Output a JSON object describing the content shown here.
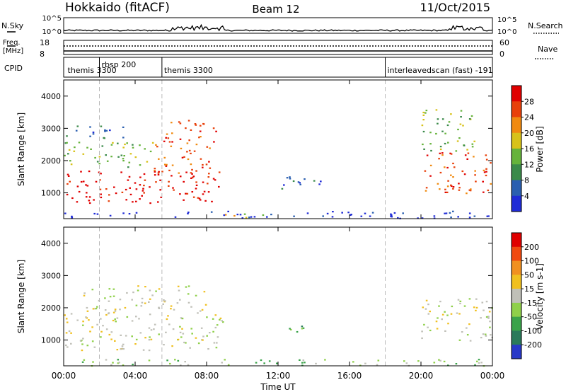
{
  "header": {
    "title": "Hokkaido (fitACF)",
    "beam": "Beam 12",
    "date": "11/Oct/2015"
  },
  "top_panels": {
    "nsky_label": "N.Sky",
    "nsky_ticks": [
      "10^5",
      "10^0"
    ],
    "nsky_right_ticks": [
      "10^5",
      "10^0"
    ],
    "nsearch_label": "N.Search",
    "freq_label_line1": "Freq.",
    "freq_label_line2": "[MHz]",
    "freq_ticks": [
      "18",
      "8"
    ],
    "nave_label": "Nave",
    "nave_ticks": [
      "60",
      "0"
    ],
    "cpid_label": "CPID"
  },
  "cpid_segments": [
    {
      "label": "themis 3300",
      "start_hour": 0.1
    },
    {
      "label": "rbsp 200",
      "start_hour": 2.0
    },
    {
      "label": "themis 3300",
      "start_hour": 5.5
    },
    {
      "label": "interleavedscan (fast) -191",
      "start_hour": 18.0
    }
  ],
  "chart_data": [
    {
      "type": "heatmap",
      "panel": "power",
      "ylabel": "Slant Range [km]",
      "ylim": [
        200,
        4500
      ],
      "yticks": [
        1000,
        2000,
        3000,
        4000
      ],
      "colorbar_label": "Power [dB]",
      "colorbar_ticks": [
        4,
        8,
        12,
        16,
        20,
        24,
        28
      ],
      "colorbar_colors": [
        "#1f2bd6",
        "#2a5fb0",
        "#3b8a4a",
        "#66b33b",
        "#d8c21a",
        "#f08a10",
        "#e8400a",
        "#e00000"
      ],
      "x_range_hours": [
        0,
        24
      ],
      "regions": [
        {
          "h0": 0.0,
          "h1": 9.0,
          "r0": 700,
          "r1": 1700,
          "level": 7
        },
        {
          "h0": 0.0,
          "h1": 5.0,
          "r0": 1800,
          "r1": 2600,
          "level": 3
        },
        {
          "h0": 5.0,
          "h1": 8.5,
          "r0": 1600,
          "r1": 3300,
          "level": 6
        },
        {
          "h0": 0.0,
          "h1": 3.5,
          "r0": 2700,
          "r1": 3100,
          "level": 1
        },
        {
          "h0": 9.0,
          "h1": 11.5,
          "r0": 250,
          "r1": 420,
          "level": 4
        },
        {
          "h0": 11.5,
          "h1": 14.5,
          "r0": 1150,
          "r1": 1550,
          "level": 1
        },
        {
          "h0": 20.0,
          "h1": 24.0,
          "r0": 1000,
          "r1": 2300,
          "level": 6
        },
        {
          "h0": 20.0,
          "h1": 23.0,
          "r0": 2300,
          "r1": 3600,
          "level": 3
        },
        {
          "h0": 0.0,
          "h1": 24.0,
          "r0": 220,
          "r1": 450,
          "level": 0
        }
      ]
    },
    {
      "type": "heatmap",
      "panel": "velocity",
      "ylabel": "Slant Range [km]",
      "ylim": [
        200,
        4500
      ],
      "yticks": [
        1000,
        2000,
        3000,
        4000
      ],
      "colorbar_label": "Velocity [m s-1]",
      "colorbar_ticks": [
        200,
        100,
        50,
        15,
        -15,
        -50,
        -100,
        -200
      ],
      "colorbar_colors": [
        "#2838c8",
        "#2a7a5a",
        "#3aa34a",
        "#8fd04a",
        "#c0c0b8",
        "#f0c020",
        "#f09020",
        "#f04a10",
        "#e00000"
      ],
      "x_range_hours": [
        0,
        24
      ],
      "regions": [
        {
          "h0": 0.0,
          "h1": 9.0,
          "r0": 700,
          "r1": 1900,
          "level": 4
        },
        {
          "h0": 1.0,
          "h1": 8.0,
          "r0": 1900,
          "r1": 2700,
          "level": 4
        },
        {
          "h0": 9.5,
          "h1": 11.5,
          "r0": 280,
          "r1": 420,
          "level": 2
        },
        {
          "h0": 12.5,
          "h1": 14.5,
          "r0": 1250,
          "r1": 1500,
          "level": 2
        },
        {
          "h0": 20.0,
          "h1": 24.0,
          "r0": 1000,
          "r1": 2300,
          "level": 4
        },
        {
          "h0": 0.0,
          "h1": 24.0,
          "r0": 220,
          "r1": 420,
          "level": 3
        }
      ]
    }
  ],
  "x_axis": {
    "label": "Time UT",
    "ticks": [
      "00:00",
      "04:00",
      "08:00",
      "12:00",
      "16:00",
      "20:00",
      "00:00"
    ]
  }
}
